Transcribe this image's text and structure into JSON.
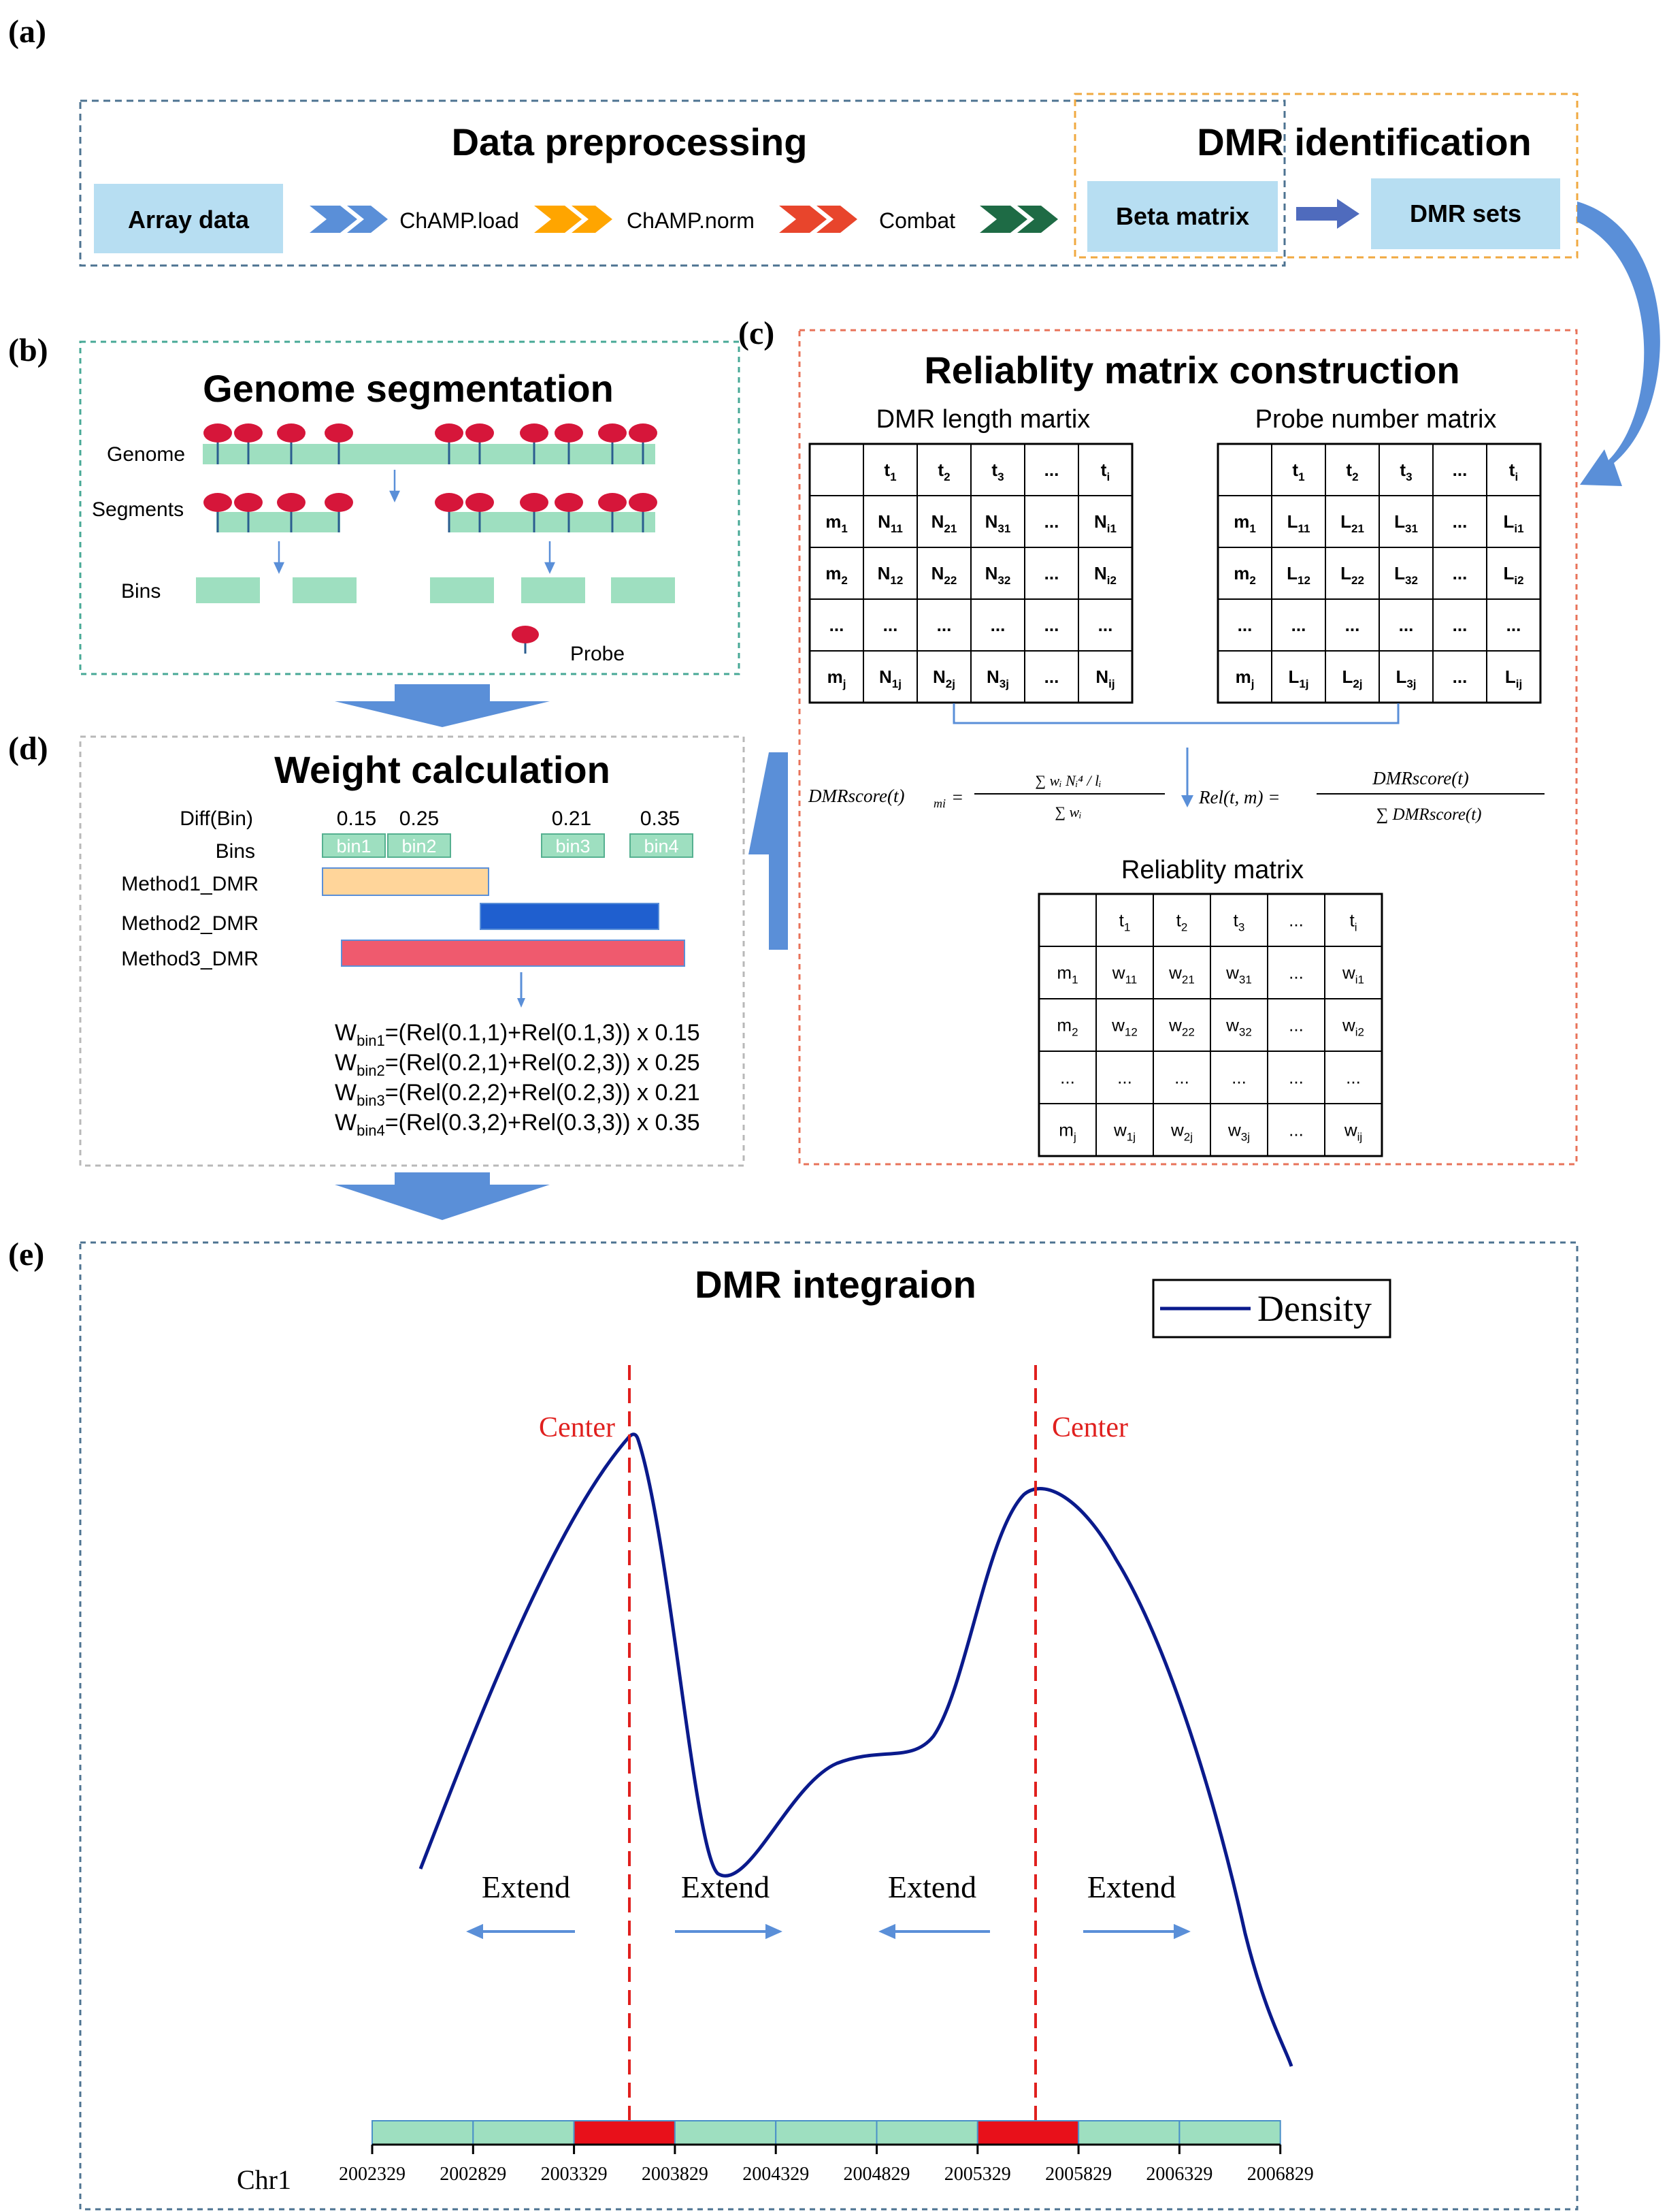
{
  "panel_labels": {
    "a": "(a)",
    "b": "(b)",
    "c": "(c)",
    "d": "(d)",
    "e": "(e)"
  },
  "panel_a": {
    "title_preprocessing": "Data preprocessing",
    "title_dmr": "DMR identification",
    "array_data": "Array data",
    "step1": "ChAMP.load",
    "step2": "ChAMP.norm",
    "step3": "Combat",
    "beta_matrix": "Beta matrix",
    "dmr_sets": "DMR sets"
  },
  "panel_b": {
    "title": "Genome segmentation",
    "genome": "Genome",
    "segments": "Segments",
    "bins": "Bins",
    "probe": "Probe"
  },
  "panel_c": {
    "title": "Reliablity matrix construction",
    "left_title": "DMR length martix",
    "right_title": "Probe number matrix",
    "result_title": "Reliablity matrix",
    "formula_left_lhs": "DMRscore(t)",
    "formula_left_sub": "mi",
    "formula_left_num": "∑ wᵢ Nᵢ⁴ / lᵢ",
    "formula_left_den": "∑ wᵢ",
    "formula_right_lhs": "Rel(t, m) =",
    "formula_right_num": "DMRscore(t)",
    "formula_right_den": "∑ DMRscore(t)"
  },
  "panel_d": {
    "title": "Weight calculation",
    "diff_label": "Diff(Bin)",
    "bins_label": "Bins",
    "diff_values": [
      "0.15",
      "0.25",
      "0.21",
      "0.35"
    ],
    "bin_names": [
      "bin1",
      "bin2",
      "bin3",
      "bin4"
    ],
    "methods": [
      "Method1_DMR",
      "Method2_DMR",
      "Method3_DMR"
    ],
    "formulas": [
      {
        "sub": "bin1",
        "expr": "=(Rel(0.1,1)+Rel(0.1,3)) x 0.15"
      },
      {
        "sub": "bin2",
        "expr": "=(Rel(0.2,1)+Rel(0.2,3)) x 0.25"
      },
      {
        "sub": "bin3",
        "expr": "=(Rel(0.2,2)+Rel(0.2,3)) x 0.21"
      },
      {
        "sub": "bin4",
        "expr": "=(Rel(0.3,2)+Rel(0.3,3)) x 0.35"
      }
    ]
  },
  "panel_e": {
    "title": "DMR integraion",
    "legend": "Density",
    "center": "Center",
    "extend": "Extend",
    "chr": "Chr1",
    "ticks": [
      "2002329",
      "2002829",
      "2003329",
      "2003829",
      "2004329",
      "2004829",
      "2005329",
      "2005829",
      "2006329",
      "2006829"
    ]
  },
  "colors": {
    "blue_arrow": "#5a8fd8",
    "orange_arrow": "#ffa500",
    "red_arrow": "#e8452c",
    "green_arrow": "#1e6b45",
    "light_blue_box": "#b7def2",
    "bin_green": "#9edfc0",
    "probe_red": "#d6163a",
    "method1": "#ffd59a",
    "method2": "#1f5fcf",
    "method3": "#ef5a6e",
    "density": "#0a1a8c",
    "center_line": "#e0201e"
  }
}
